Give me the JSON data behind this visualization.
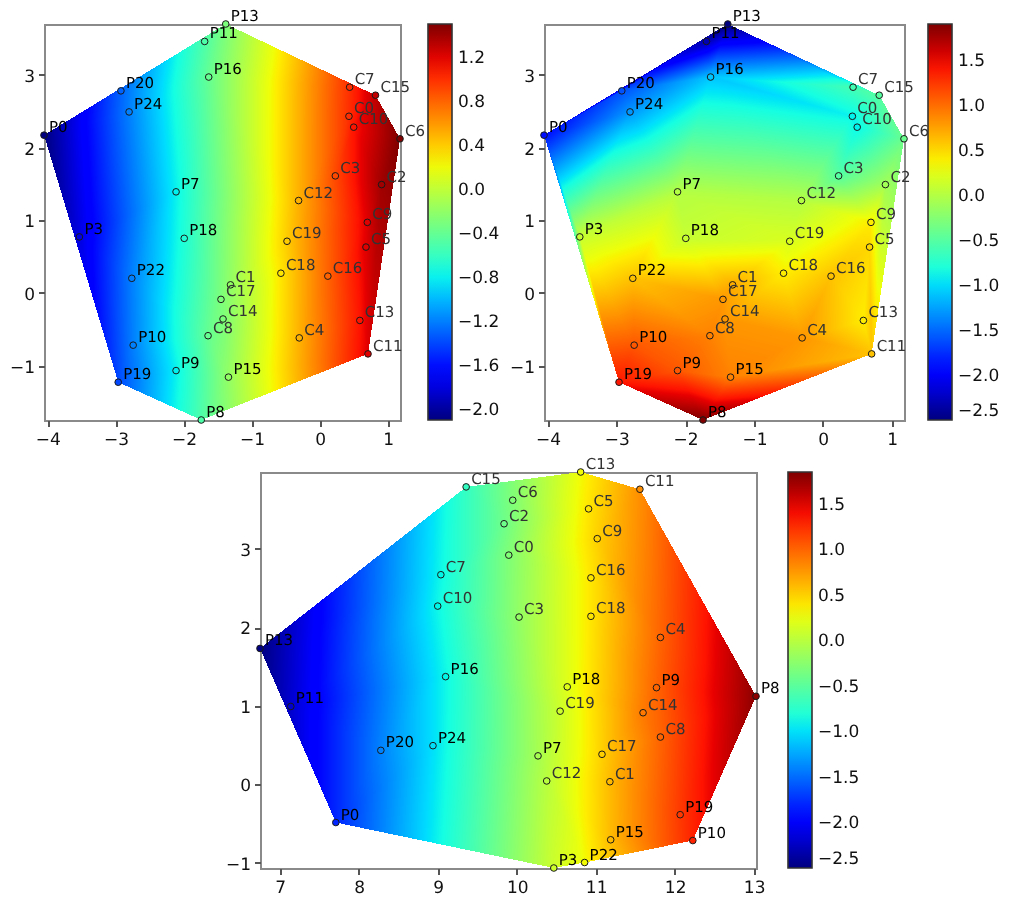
{
  "chart_data": [
    {
      "type": "scatter",
      "marker": "circle",
      "xlim": [
        -4.05,
        1.18
      ],
      "xticks": [
        {
          "value": -4,
          "label": "−4"
        },
        {
          "value": -3,
          "label": "−3"
        },
        {
          "value": -2,
          "label": "−2"
        },
        {
          "value": -1,
          "label": "−1"
        },
        0,
        1
      ],
      "ylim": [
        -1.75,
        3.7
      ],
      "yticks": [
        -1,
        0,
        1,
        2,
        3
      ],
      "clim": [
        -2.1,
        1.5
      ],
      "cticks": [
        {
          "value": -2.0,
          "label": "−2.0"
        },
        {
          "value": -1.6,
          "label": "−1.6"
        },
        {
          "value": -1.2,
          "label": "−1.2"
        },
        {
          "value": -0.8,
          "label": "−0.8"
        },
        {
          "value": -0.4,
          "label": "−0.4"
        },
        {
          "value": 0,
          "label": "0.0"
        },
        0.4,
        0.8,
        1.2
      ],
      "series": [
        {
          "value_labels": [
            "P0",
            "P3",
            "P7",
            "P8",
            "P9",
            "P10",
            "P11",
            "P13",
            "P15",
            "P16",
            "P18",
            "P19",
            "P20",
            "P22",
            "P24"
          ],
          "x": [
            -4.05,
            -3.53,
            -2.11,
            -1.74,
            -2.11,
            -2.74,
            -1.69,
            -1.38,
            -1.34,
            -1.63,
            -1.99,
            -2.96,
            -2.92,
            -2.76,
            -2.8
          ],
          "values": [
            2.17,
            0.77,
            1.39,
            -1.75,
            -1.07,
            -0.72,
            3.46,
            3.7,
            -1.16,
            2.97,
            0.75,
            -1.23,
            2.78,
            0.2,
            2.49
          ],
          "cvalues": [
            -2.1,
            -1.8,
            -0.8,
            -0.5,
            -0.8,
            -1.2,
            -0.5,
            -0.3,
            -0.2,
            -0.4,
            -0.7,
            -1.4,
            -1.3,
            -1.2,
            -1.2
          ],
          "colors": [
            "#000080",
            "#0000e0",
            "#00f1ee",
            "#4effa9",
            "#00f1ee",
            "#0080ff",
            "#4effa9",
            "#7bff7b",
            "#92ff65",
            "#65ff92",
            "#20ffd7",
            "#0047ff",
            "#0063ff",
            "#0080ff",
            "#0080ff"
          ]
        },
        {
          "value_labels": [
            "C0",
            "C1",
            "C2",
            "C3",
            "C4",
            "C5",
            "C6",
            "C7",
            "C8",
            "C9",
            "C10",
            "C11",
            "C12",
            "C13",
            "C14",
            "C15",
            "C16",
            "C17",
            "C18",
            "C19"
          ],
          "x": [
            0.43,
            -1.31,
            0.91,
            0.23,
            -0.3,
            0.68,
            1.18,
            0.44,
            -1.64,
            0.7,
            0.5,
            0.71,
            -0.31,
            0.59,
            -1.42,
            0.82,
            0.12,
            -1.45,
            -0.57,
            -0.48
          ],
          "values": [
            2.43,
            0.11,
            1.49,
            1.61,
            -0.62,
            0.63,
            2.12,
            2.83,
            -0.59,
            0.97,
            2.28,
            -0.84,
            1.27,
            -0.38,
            -0.36,
            2.72,
            0.23,
            -0.09,
            0.27,
            0.71
          ],
          "cvalues": [
            1.0,
            -0.2,
            1.4,
            0.9,
            0.5,
            1.2,
            1.5,
            1.0,
            -0.4,
            1.2,
            1.1,
            1.2,
            0.5,
            1.1,
            -0.3,
            1.3,
            0.8,
            -0.3,
            0.3,
            0.4
          ],
          "colors": [
            "#ff2e00",
            "#92ff65",
            "#a00000",
            "#ff4800",
            "#ffb100",
            "#e00000",
            "#800000",
            "#ff2e00",
            "#65ff92",
            "#e00000",
            "#ff1400",
            "#e00000",
            "#ffb100",
            "#ff1400",
            "#7bff7b",
            "#c00000",
            "#ff6300",
            "#7bff7b",
            "#ffe600",
            "#ffcc00"
          ]
        }
      ]
    },
    {
      "type": "scatter",
      "marker": "circle",
      "xlim": [
        -4.05,
        1.18
      ],
      "xticks": [
        {
          "value": -4,
          "label": "−4"
        },
        {
          "value": -3,
          "label": "−3"
        },
        {
          "value": -2,
          "label": "−2"
        },
        {
          "value": -1,
          "label": "−1"
        },
        0,
        1
      ],
      "ylim": [
        -1.75,
        3.7
      ],
      "yticks": [
        -1,
        0,
        1,
        2,
        3
      ],
      "clim": [
        -2.5,
        1.9
      ],
      "cticks": [
        {
          "value": -2.5,
          "label": "−2.5"
        },
        {
          "value": -2.0,
          "label": "−2.0"
        },
        {
          "value": -1.5,
          "label": "−1.5"
        },
        {
          "value": -1.0,
          "label": "−1.0"
        },
        {
          "value": -0.5,
          "label": "−0.5"
        },
        {
          "value": 0,
          "label": "0.0"
        },
        0.5,
        {
          "value": 1,
          "label": "1.0"
        },
        1.5
      ],
      "series": [
        {
          "value_labels": [
            "P0",
            "P3",
            "P7",
            "P8",
            "P9",
            "P10",
            "P11",
            "P13",
            "P15",
            "P16",
            "P18",
            "P19",
            "P20",
            "P22",
            "P24"
          ],
          "x": [
            -4.05,
            -3.53,
            -2.11,
            -1.74,
            -2.11,
            -2.74,
            -1.69,
            -1.38,
            -1.34,
            -1.63,
            -1.99,
            -2.96,
            -2.92,
            -2.76,
            -2.8
          ],
          "values": [
            2.17,
            0.77,
            1.39,
            -1.75,
            -1.07,
            -0.72,
            3.46,
            3.7,
            -1.16,
            2.97,
            0.75,
            -1.23,
            2.78,
            0.2,
            2.49
          ],
          "cvalues": [
            -1.9,
            0.1,
            0.0,
            1.9,
            1.1,
            1.1,
            -2.3,
            -2.5,
            0.9,
            -1.1,
            0.1,
            1.4,
            -1.6,
            0.6,
            -1.3
          ],
          "colors": [
            "#000cff",
            "#c6ff31",
            "#b3ff43",
            "#800000",
            "#ff5700",
            "#ff5700",
            "#0000b4",
            "#000080",
            "#ff8200",
            "#00c5ff",
            "#c6ff31",
            "#ff1600",
            "#0051ff",
            "#ffc200",
            "#0097ff"
          ]
        },
        {
          "value_labels": [
            "C0",
            "C1",
            "C2",
            "C3",
            "C4",
            "C5",
            "C6",
            "C7",
            "C8",
            "C9",
            "C10",
            "C11",
            "C12",
            "C13",
            "C14",
            "C15",
            "C16",
            "C17",
            "C18",
            "C19"
          ],
          "x": [
            0.43,
            -1.31,
            0.91,
            0.23,
            -0.3,
            0.68,
            1.18,
            0.44,
            -1.64,
            0.7,
            0.5,
            0.71,
            -0.31,
            0.59,
            -1.42,
            0.82,
            0.12,
            -1.45,
            -0.57,
            -0.48
          ],
          "values": [
            2.43,
            0.11,
            1.49,
            1.61,
            -0.62,
            0.63,
            2.12,
            2.83,
            -0.59,
            0.97,
            2.28,
            -0.84,
            1.27,
            -0.38,
            -0.36,
            2.72,
            0.23,
            -0.09,
            0.27,
            0.71
          ],
          "cvalues": [
            -0.9,
            0.7,
            -0.1,
            -0.5,
            0.8,
            0.5,
            -0.4,
            -0.6,
            0.9,
            0.4,
            -0.9,
            0.6,
            0.0,
            0.4,
            0.8,
            -0.5,
            0.6,
            0.8,
            0.4,
            0.2
          ],
          "colors": [
            "#00f3ec",
            "#ffad00",
            "#a1ff56",
            "#56ffa1",
            "#ff9700",
            "#ffd700",
            "#69ff8e",
            "#43ffb3",
            "#ff8200",
            "#feed00",
            "#00f3ec",
            "#ffc200",
            "#b3ff43",
            "#feed00",
            "#ff9700",
            "#56ffa1",
            "#ffc200",
            "#ff9700",
            "#feed00",
            "#d9ff1e"
          ]
        }
      ]
    },
    {
      "type": "scatter",
      "marker": "circle",
      "xlim": [
        6.75,
        13.03
      ],
      "xticks": [
        7,
        8,
        9,
        10,
        11,
        12,
        13
      ],
      "ylim": [
        -1.07,
        3.98
      ],
      "yticks": [
        -1,
        0,
        1,
        2,
        3
      ],
      "clim": [
        -2.5,
        1.85
      ],
      "cticks": [
        {
          "value": -2.5,
          "label": "−2.5"
        },
        {
          "value": -2.0,
          "label": "−2.0"
        },
        {
          "value": -1.5,
          "label": "−1.5"
        },
        {
          "value": -1.0,
          "label": "−1.0"
        },
        {
          "value": -0.5,
          "label": "−0.5"
        },
        {
          "value": 0,
          "label": "0.0"
        },
        0.5,
        {
          "value": 1,
          "label": "1.0"
        },
        1.5
      ],
      "series": [
        {
          "value_labels": [
            "P0",
            "P3",
            "P7",
            "P8",
            "P9",
            "P10",
            "P11",
            "P13",
            "P15",
            "P16",
            "P18",
            "P19",
            "P20",
            "P22",
            "P24"
          ],
          "x": [
            7.71,
            10.47,
            10.27,
            13.03,
            11.77,
            12.23,
            7.14,
            6.75,
            11.19,
            9.1,
            10.64,
            12.07,
            8.28,
            10.86,
            8.94
          ],
          "values": [
            -0.49,
            -1.07,
            0.36,
            1.12,
            1.23,
            -0.72,
            0.99,
            1.73,
            -0.71,
            1.37,
            1.24,
            -0.39,
            0.43,
            -1.0,
            0.49
          ],
          "cvalues": [
            -1.8,
            0.1,
            -0.1,
            1.8,
            1.0,
            1.3,
            -2.2,
            -2.5,
            0.6,
            -0.9,
            0.2,
            1.2,
            -1.4,
            0.3,
            -1.0
          ],
          "colors": [
            "#0025ff",
            "#ccff2b",
            "#a6ff51",
            "#8d0000",
            "#ff6400",
            "#ff2200",
            "#0000cf",
            "#000080",
            "#ffba00",
            "#00f8e8",
            "#dfff18",
            "#ff3800",
            "#0082ff",
            "#f2fc05",
            "#00e0fb"
          ]
        },
        {
          "value_labels": [
            "C0",
            "C1",
            "C2",
            "C3",
            "C4",
            "C5",
            "C6",
            "C7",
            "C8",
            "C9",
            "C10",
            "C11",
            "C12",
            "C13",
            "C14",
            "C15",
            "C16",
            "C17",
            "C18",
            "C19"
          ],
          "x": [
            9.9,
            11.18,
            9.84,
            10.03,
            11.82,
            10.91,
            9.95,
            9.04,
            11.82,
            11.02,
            9.0,
            11.56,
            10.38,
            10.81,
            11.6,
            9.36,
            10.94,
            11.08,
            10.94,
            10.55
          ],
          "values": [
            2.92,
            0.03,
            3.32,
            2.13,
            1.87,
            3.51,
            3.62,
            2.67,
            0.6,
            3.13,
            2.27,
            3.76,
            0.04,
            3.98,
            0.91,
            3.79,
            2.63,
            0.38,
            2.14,
            0.93
          ],
          "cvalues": [
            -0.3,
            0.6,
            -0.4,
            -0.2,
            1.0,
            0.4,
            -0.3,
            -0.9,
            1.0,
            0.5,
            -0.9,
            0.8,
            0.0,
            0.3,
            0.9,
            -0.7,
            0.4,
            0.5,
            0.4,
            0.1
          ],
          "colors": [
            "#80ff77",
            "#ffba00",
            "#6dff8a",
            "#93ff64",
            "#ff6400",
            "#ffe600",
            "#80ff77",
            "#00f8e8",
            "#ff6400",
            "#ffd000",
            "#00f8e8",
            "#ff8f00",
            "#b9ff3e",
            "#f2fc05",
            "#ff7900",
            "#34ffc2",
            "#ffe600",
            "#ffd000",
            "#ffe600",
            "#ccff2b"
          ]
        }
      ]
    }
  ]
}
